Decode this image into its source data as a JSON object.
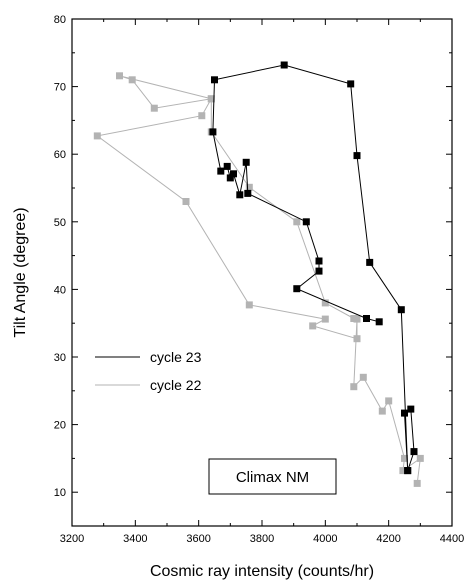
{
  "chart_data": {
    "type": "line",
    "xlabel": "Cosmic ray intensity (counts/hr)",
    "ylabel": "Tilt Angle (degree)",
    "xlim": [
      3200,
      4400
    ],
    "ylim": [
      5,
      80
    ],
    "xticks": [
      3200,
      3400,
      3600,
      3800,
      4000,
      4200,
      4400
    ],
    "yticks": [
      10,
      20,
      30,
      40,
      50,
      60,
      70,
      80
    ],
    "xticks_minor": [
      3300,
      3500,
      3700,
      3900,
      4100,
      4300
    ],
    "yticks_minor": [
      15,
      25,
      35,
      45,
      55,
      65,
      75
    ],
    "grid": false,
    "legend_position": "lower-left",
    "annotation": "Climax NM",
    "series": [
      {
        "name": "cycle 23",
        "color": "#000000",
        "marker": "square",
        "points": [
          [
            4260,
            13.2
          ],
          [
            4280,
            16.0
          ],
          [
            4270,
            22.3
          ],
          [
            4250,
            21.7
          ],
          [
            4260,
            13.2
          ],
          [
            4240,
            37.0
          ],
          [
            4140,
            44.0
          ],
          [
            4100,
            59.8
          ],
          [
            4080,
            70.4
          ],
          [
            3870,
            73.2
          ],
          [
            3650,
            71.0
          ],
          [
            3645,
            63.3
          ],
          [
            3670,
            57.5
          ],
          [
            3690,
            58.2
          ],
          [
            3700,
            56.5
          ],
          [
            3710,
            57.1
          ],
          [
            3730,
            54.0
          ],
          [
            3750,
            58.8
          ],
          [
            3755,
            54.2
          ],
          [
            3940,
            50.0
          ],
          [
            3980,
            44.2
          ],
          [
            3980,
            42.7
          ],
          [
            3910,
            40.1
          ],
          [
            4130,
            35.7
          ],
          [
            4170,
            35.2
          ]
        ]
      },
      {
        "name": "cycle 22",
        "color": "#b3b3b3",
        "marker": "square",
        "points": [
          [
            4290,
            11.3
          ],
          [
            4300,
            15.0
          ],
          [
            4245,
            13.2
          ],
          [
            4250,
            15.0
          ],
          [
            4200,
            23.5
          ],
          [
            4180,
            22.0
          ],
          [
            4120,
            27.0
          ],
          [
            4090,
            25.6
          ],
          [
            4100,
            35.6
          ],
          [
            4100,
            32.7
          ],
          [
            3960,
            34.6
          ],
          [
            4000,
            35.6
          ],
          [
            3760,
            37.7
          ],
          [
            3560,
            53.0
          ],
          [
            3280,
            62.7
          ],
          [
            3610,
            65.7
          ],
          [
            3640,
            68.2
          ],
          [
            3460,
            66.8
          ],
          [
            3390,
            71.0
          ],
          [
            3350,
            71.6
          ],
          [
            3640,
            68.2
          ],
          [
            3640,
            63.3
          ],
          [
            3760,
            55.1
          ],
          [
            3910,
            50.0
          ],
          [
            4000,
            38.0
          ],
          [
            4090,
            35.7
          ]
        ]
      }
    ]
  }
}
